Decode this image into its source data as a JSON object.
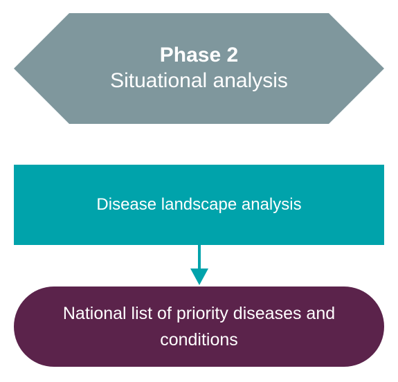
{
  "phase": {
    "title": "Phase 2",
    "subtitle": "Situational analysis"
  },
  "step": {
    "label": "Disease landscape analysis"
  },
  "output": {
    "label": "National list of priority diseases and conditions"
  },
  "colors": {
    "phase_fill": "#7f979d",
    "step_fill": "#00a3ab",
    "arrow": "#00a3ab",
    "output_fill": "#5b234b",
    "text": "#ffffff"
  }
}
